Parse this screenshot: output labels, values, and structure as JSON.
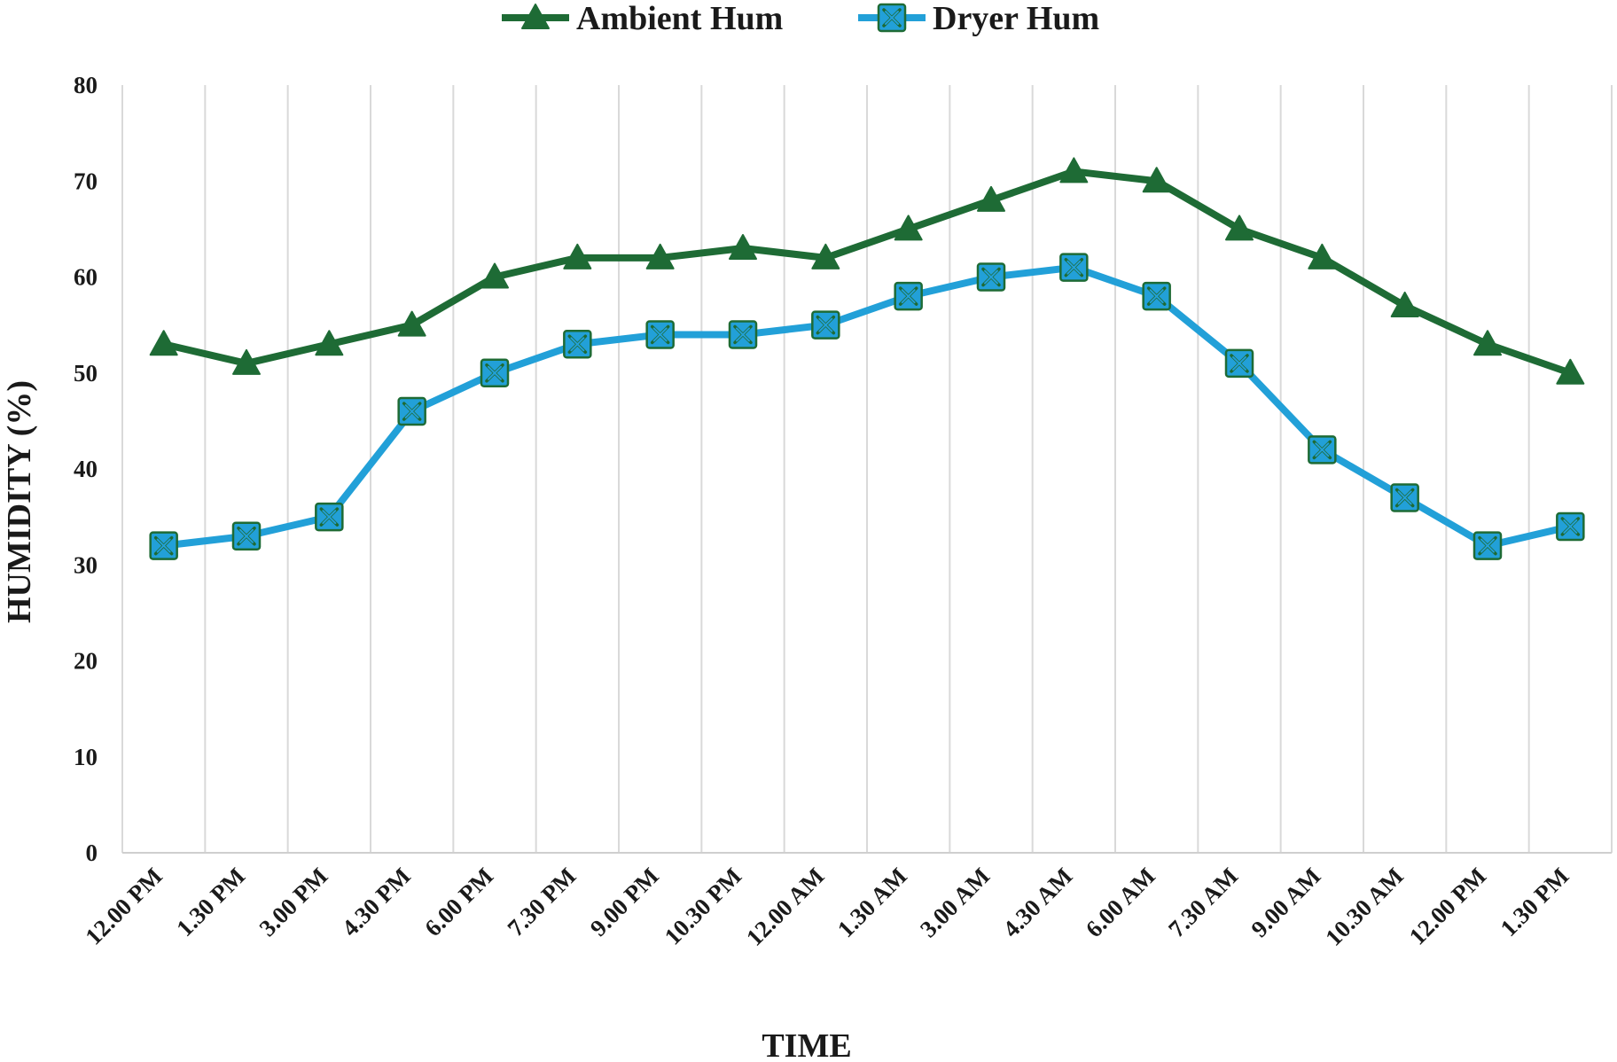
{
  "chart_data": {
    "type": "line",
    "title": "",
    "xlabel": "TIME",
    "ylabel": "HUMIDITY (%)",
    "ylim": [
      0,
      80
    ],
    "yticks": [
      0,
      10,
      20,
      30,
      40,
      50,
      60,
      70,
      80
    ],
    "grid": "vertical",
    "legend_position": "top-center",
    "categories": [
      "12.00 PM",
      "1.30 PM",
      "3.00 PM",
      "4.30 PM",
      "6.00 PM",
      "7.30 PM",
      "9.00 PM",
      "10.30 PM",
      "12.00 AM",
      "1.30 AM",
      "3.00 AM",
      "4.30 AM",
      "6.00 AM",
      "7.30 AM",
      "9.00 AM",
      "10.30 AM",
      "12.00 PM",
      "1.30 PM"
    ],
    "series": [
      {
        "name": "Ambient Hum",
        "color": "#1e6b35",
        "marker": "triangle",
        "values": [
          53,
          51,
          53,
          55,
          60,
          62,
          62,
          63,
          62,
          65,
          68,
          71,
          70,
          65,
          62,
          57,
          53,
          50
        ]
      },
      {
        "name": "Dryer Hum",
        "color": "#22a0d8",
        "marker_edge": "#1e6b35",
        "marker": "x-square",
        "values": [
          32,
          33,
          35,
          46,
          50,
          53,
          54,
          54,
          55,
          58,
          60,
          61,
          58,
          51,
          42,
          37,
          32,
          34
        ]
      }
    ]
  }
}
